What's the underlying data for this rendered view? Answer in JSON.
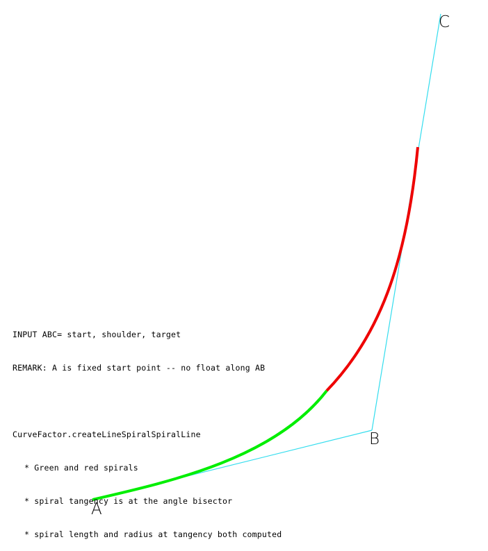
{
  "points": {
    "A": "A",
    "B": "B",
    "C": "C"
  },
  "notes": {
    "line1": "INPUT ABC= start, shoulder, target",
    "line2": "REMARK: A is fixed start point -- no float along AB",
    "line3": "CurveFactor.createLineSpiralSpiralLine",
    "bullets": [
      "* Green and red spirals",
      "* spiral tangency is at the angle bisector",
      "* spiral length and radius at tangency both computed"
    ]
  },
  "colors": {
    "polyline": "#33ddee",
    "spiral_1": "#00ee00",
    "spiral_2": "#ee0000",
    "text": "#000000"
  }
}
